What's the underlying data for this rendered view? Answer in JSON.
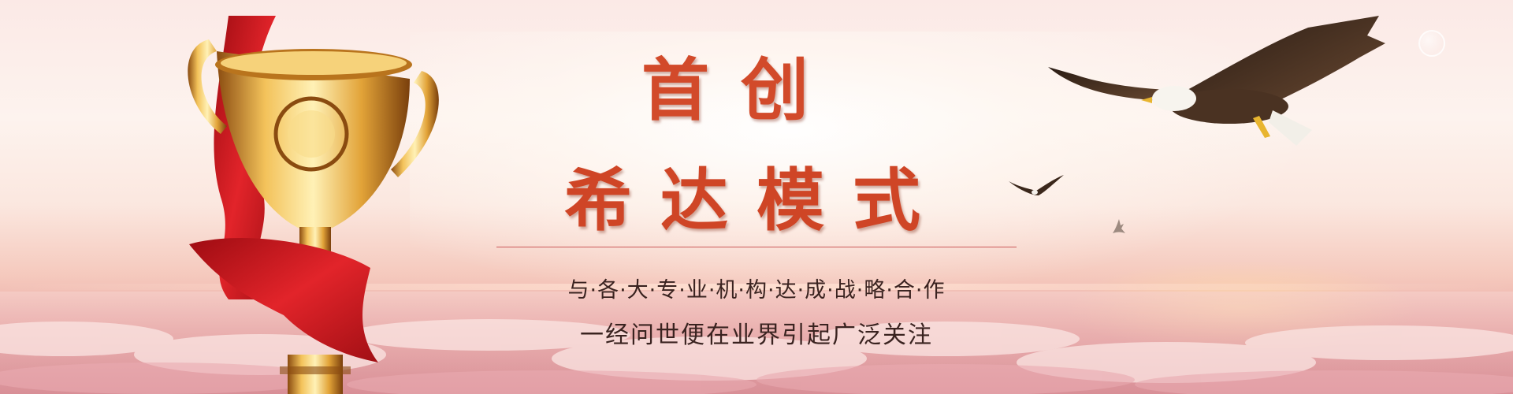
{
  "banner": {
    "title_line1": "首创",
    "title_line2": "希达模式",
    "subtitle1": "与·各·大·专·业·机·构·达·成·战·略·合·作",
    "subtitle2": "一经问世便在业界引起广泛关注"
  },
  "colors": {
    "title": "#d24a2a",
    "divider": "#cc5b5b",
    "subtitle": "#3a2320",
    "ribbon": "#c8151b",
    "trophy_gold": "#e8a63a"
  },
  "icons": {
    "trophy": "trophy-icon",
    "eagle": "eagle-icon"
  }
}
